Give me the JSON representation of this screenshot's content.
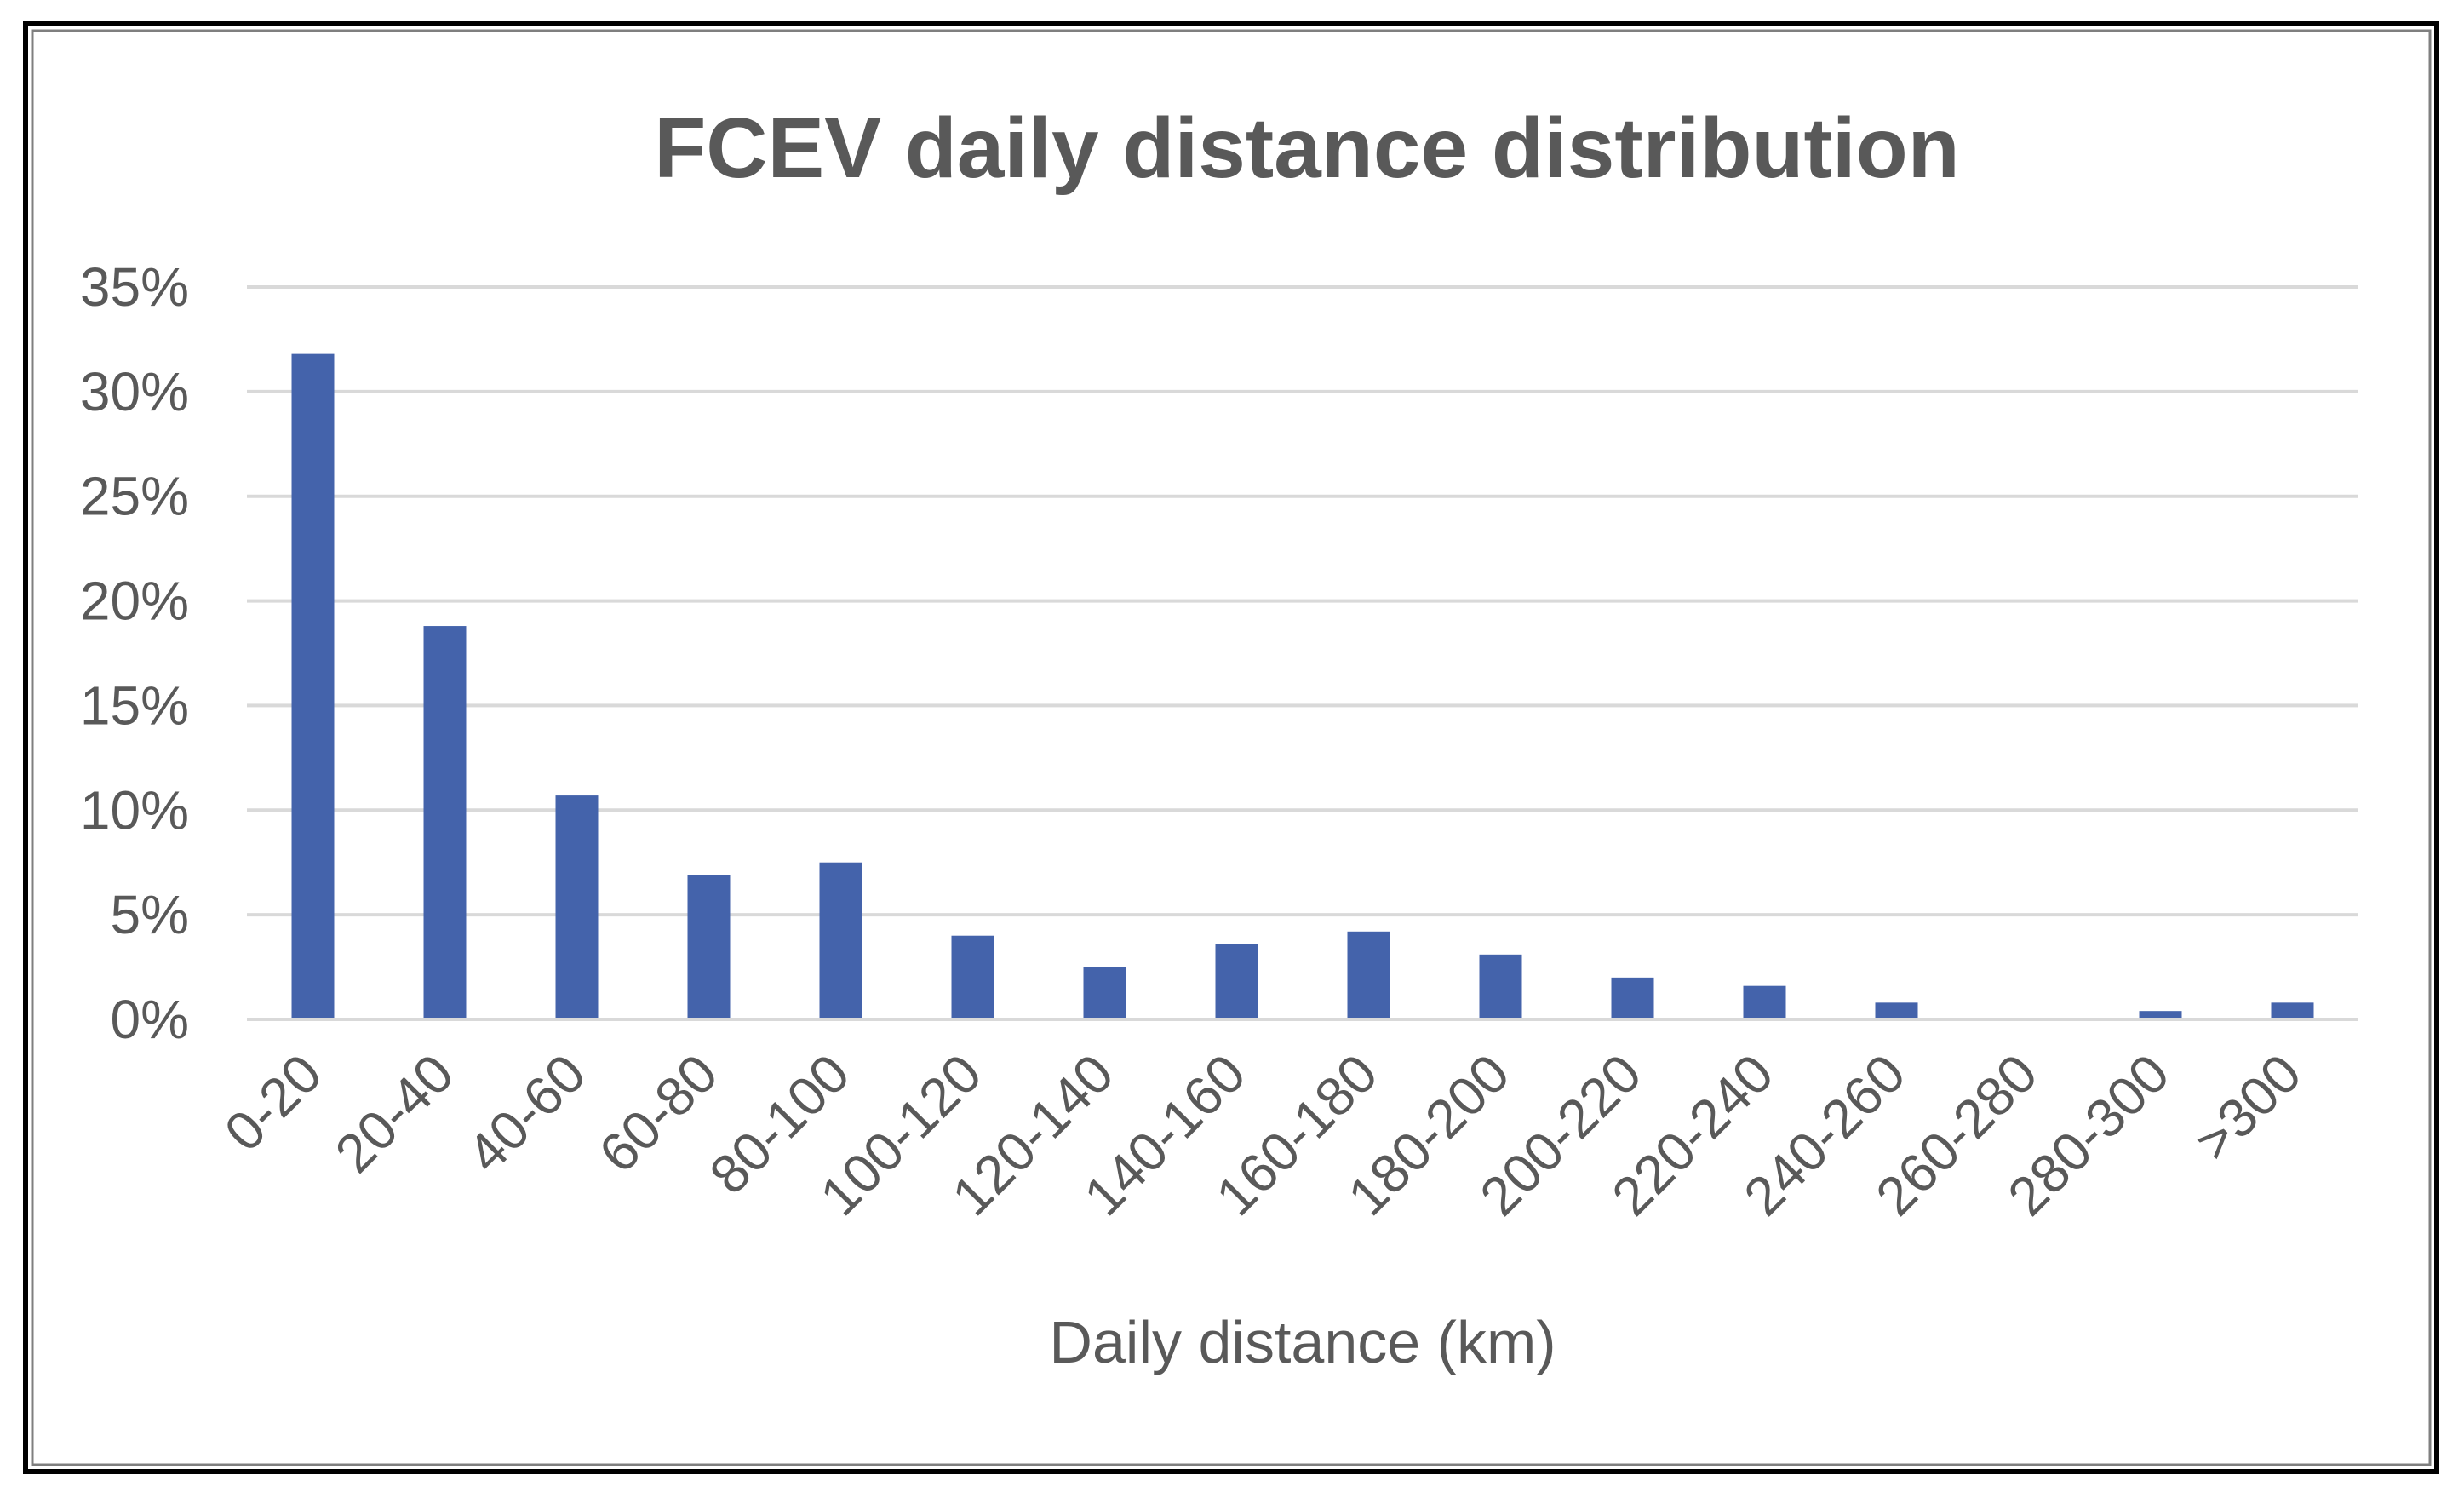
{
  "chart_data": {
    "type": "bar",
    "title": "FCEV daily distance distribution",
    "xlabel": "Daily distance (km)",
    "ylabel": "",
    "categories": [
      "0-20",
      "20-40",
      "40-60",
      "60-80",
      "80-100",
      "100-120",
      "120-140",
      "140-160",
      "160-180",
      "180-200",
      "200-220",
      "220-240",
      "240-260",
      "260-280",
      "280-300",
      ">300"
    ],
    "values": [
      31.8,
      18.8,
      10.7,
      6.9,
      7.5,
      4.0,
      2.5,
      3.6,
      4.2,
      3.1,
      2.0,
      1.6,
      0.8,
      0.0,
      0.4,
      0.8
    ],
    "value_unit": "%",
    "ylim": [
      0,
      35
    ],
    "yticks": [
      0,
      5,
      10,
      15,
      20,
      25,
      30,
      35
    ],
    "ytick_labels": [
      "0%",
      "5%",
      "10%",
      "15%",
      "20%",
      "25%",
      "30%",
      "35%"
    ],
    "grid": true,
    "legend": "none",
    "bar_color": "#4463ab"
  }
}
